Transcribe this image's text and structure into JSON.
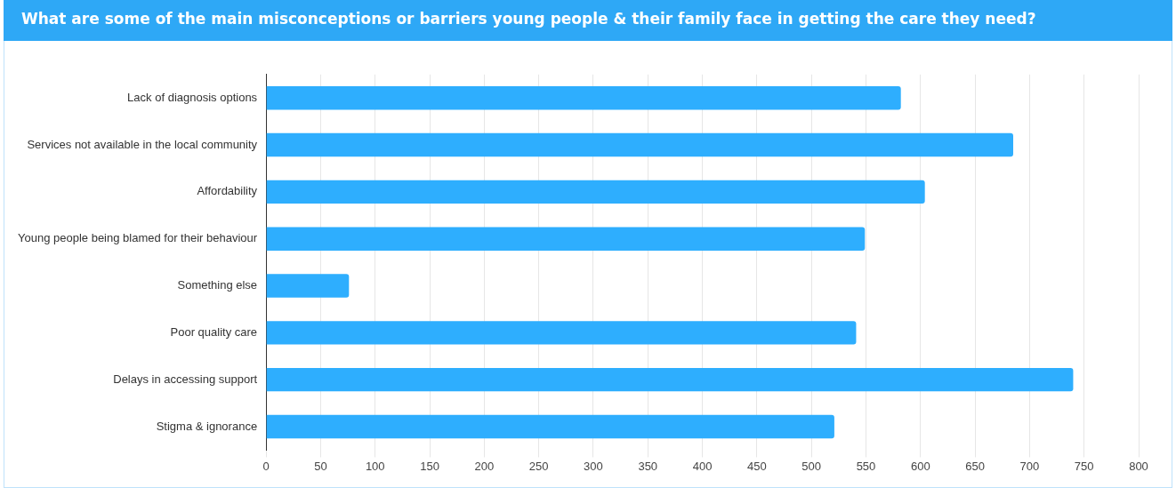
{
  "chart_data": {
    "type": "bar",
    "orientation": "horizontal",
    "title": "What are some of the main misconceptions or barriers young people & their family face in getting the care they need?",
    "categories": [
      "Lack of diagnosis options",
      "Services not available in the local community",
      "Affordability",
      "Young people being blamed for their behaviour",
      "Something else",
      "Poor quality care",
      "Delays in accessing support",
      "Stigma & ignorance"
    ],
    "values": [
      582,
      685,
      604,
      549,
      76,
      541,
      740,
      521
    ],
    "color": "#2eaefe",
    "xlim": [
      0,
      800
    ],
    "xticks": [
      0,
      50,
      100,
      150,
      200,
      250,
      300,
      350,
      400,
      450,
      500,
      550,
      600,
      650,
      700,
      750,
      800
    ],
    "grid": "x",
    "legend": false
  }
}
